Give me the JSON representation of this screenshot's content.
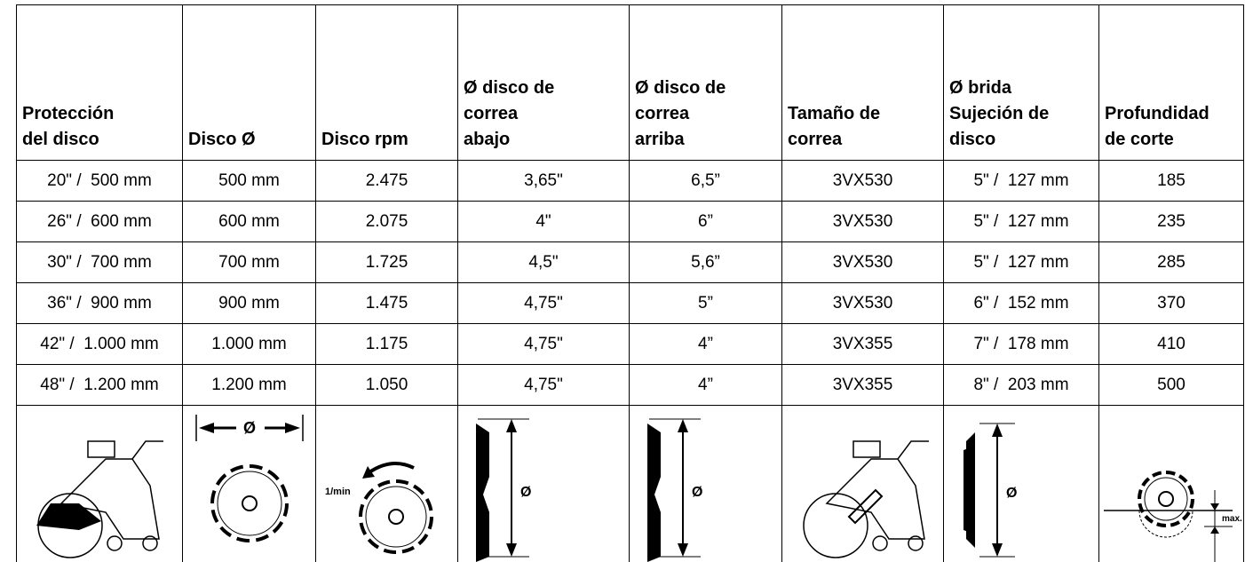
{
  "table": {
    "header": [
      "Protección\ndel disco",
      "Disco Ø",
      "Disco rpm",
      "Ø disco de\ncorrea\nabajo",
      "Ø disco de\ncorrea\narriba",
      "Tamaño de\ncorrea",
      "Ø brida\nSujeción de\ndisco",
      "Profundidad\nde corte"
    ],
    "rows": [
      [
        "20\" /  500 mm",
        "500 mm",
        "2.475",
        "3,65\"",
        "6,5”",
        "3VX530",
        "5\" /  127 mm",
        "185"
      ],
      [
        "26\" /  600 mm",
        "600 mm",
        "2.075",
        "4\"",
        "6”",
        "3VX530",
        "5\" /  127 mm",
        "235"
      ],
      [
        "30\" /  700 mm",
        "700 mm",
        "1.725",
        "4,5\"",
        "5,6”",
        "3VX530",
        "5\" /  127 mm",
        "285"
      ],
      [
        "36\" /  900 mm",
        "900 mm",
        "1.475",
        "4,75\"",
        "5”",
        "3VX530",
        "6\" /  152 mm",
        "370"
      ],
      [
        "42\" /  1.000 mm",
        "1.000 mm",
        "1.175",
        "4,75\"",
        "4”",
        "3VX355",
        "7\" /  178 mm",
        "410"
      ],
      [
        "48\" /  1.200 mm",
        "1.200 mm",
        "1.050",
        "4,75\"",
        "4”",
        "3VX355",
        "8\" /  203 mm",
        "500"
      ]
    ],
    "icons": {
      "disc_diameter": "Ø",
      "rpm": "1/min",
      "pulley_down": "Ø",
      "pulley_up": "Ø",
      "flange": "Ø",
      "depth": "max."
    }
  }
}
